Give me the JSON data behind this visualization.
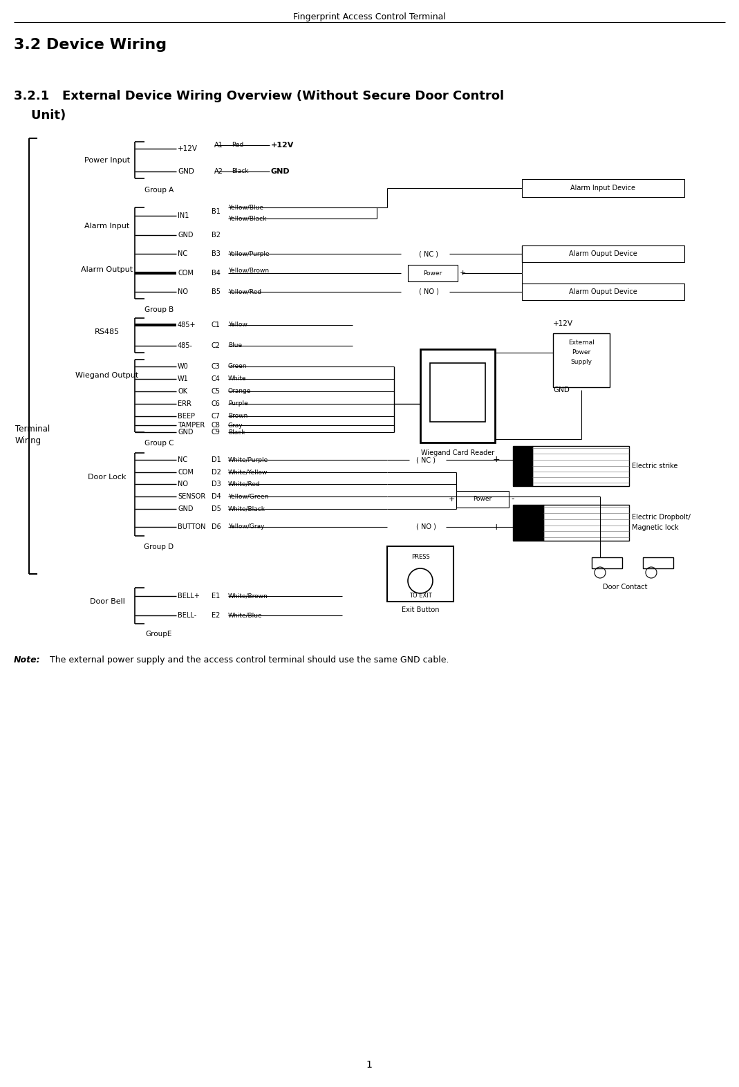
{
  "page_title": "Fingerprint Access Control Terminal",
  "section_title": "3.2 Device Wiring",
  "sub_title_1": "3.2.1   External Device Wiring Overview (Without Secure Door Control",
  "sub_title_2": "    Unit)",
  "note_bold": "Note:",
  "note_rest": " The external power supply and the access control terminal should use the same GND cable.",
  "page_number": "1",
  "bg_color": "#ffffff"
}
